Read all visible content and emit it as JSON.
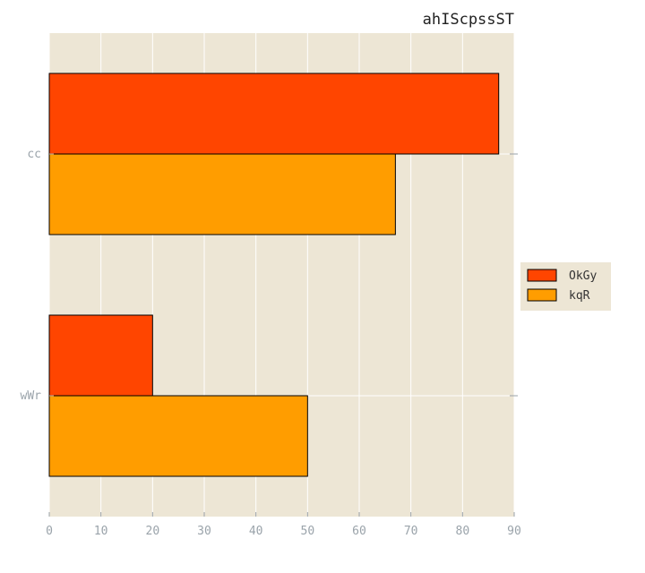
{
  "chart_data": {
    "type": "bar",
    "orientation": "horizontal",
    "title": "ahIScpssST",
    "xlabel": "",
    "ylabel": "",
    "categories": [
      "wWr",
      "cc"
    ],
    "series": [
      {
        "name": "OkGy",
        "values": [
          20,
          87
        ],
        "color": "#ff4500"
      },
      {
        "name": "kqR",
        "values": [
          50,
          67
        ],
        "color": "#ff9d00"
      }
    ],
    "xlim": [
      0,
      90
    ],
    "xticks": [
      0,
      10,
      20,
      30,
      40,
      50,
      60,
      70,
      80,
      90
    ],
    "grid": true,
    "legend_position": "right",
    "background_color": "#ede6d5"
  }
}
